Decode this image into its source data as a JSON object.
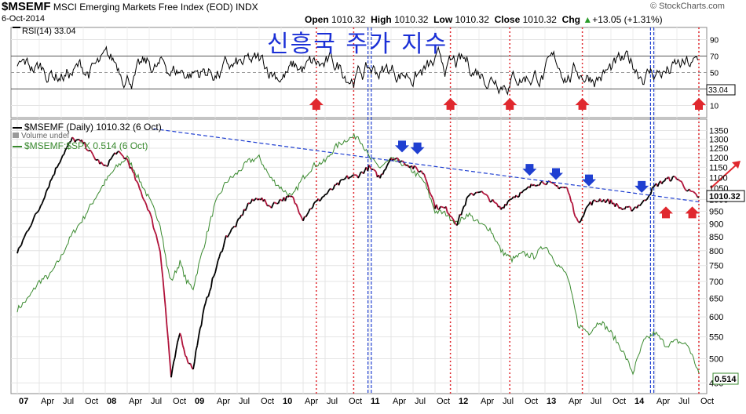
{
  "header": {
    "symbol": "$MSEMF",
    "name": "MSCI Emerging Markets Free Index (EOD)",
    "exchange": "INDX",
    "date": "6-Oct-2014",
    "brand": "© StockCharts.com",
    "open_label": "Open",
    "open": "1010.32",
    "high_label": "High",
    "high": "1010.32",
    "low_label": "Low",
    "low": "1010.32",
    "close_label": "Close",
    "close": "1010.32",
    "chg_label": "Chg",
    "chg": "+13.05 (+1.31%)",
    "chg_arrow": "▲"
  },
  "overlay_title": "신흥국 주가 지수",
  "rsi": {
    "legend": "RSI(14) 33.04",
    "last": "33.04",
    "ticks": [
      90,
      70,
      50,
      30,
      10
    ],
    "ylim": [
      0,
      100
    ],
    "line_color": "#000000"
  },
  "price_legend": {
    "main": "$MSEMF (Daily) 1010.32 (6 Oct)",
    "volume": "Volume undef",
    "ratio": "$MSEMF:$SPX 0.514 (6 Oct)"
  },
  "chart_data": {
    "type": "line",
    "x_labels": [
      "07",
      "Apr",
      "Jul",
      "Oct",
      "08",
      "Apr",
      "Jul",
      "Oct",
      "09",
      "Apr",
      "Jul",
      "Oct",
      "10",
      "Apr",
      "Jul",
      "Oct",
      "11",
      "Apr",
      "Jul",
      "Oct",
      "12",
      "Apr",
      "Jul",
      "Oct",
      "13",
      "Apr",
      "Jul",
      "Oct",
      "14",
      "Apr",
      "Jul",
      "Oct"
    ],
    "y_ticks": [
      1350,
      1300,
      1250,
      1200,
      1150,
      1100,
      1050,
      1000,
      950,
      900,
      850,
      800,
      750,
      700,
      650,
      600,
      550,
      500,
      450
    ],
    "y_log": true,
    "ylim": [
      440,
      1380
    ],
    "price_last": "1010.32",
    "ratio_last": "0.514",
    "series": [
      {
        "name": "$MSEMF",
        "color": "#000000",
        "points": [
          [
            0,
            790
          ],
          [
            0.5,
            880
          ],
          [
            1,
            960
          ],
          [
            1.5,
            1080
          ],
          [
            2,
            1200
          ],
          [
            2.5,
            1300
          ],
          [
            3,
            1280
          ],
          [
            3.5,
            1200
          ],
          [
            4,
            1150
          ],
          [
            4.5,
            1230
          ],
          [
            5,
            1190
          ],
          [
            5.5,
            1060
          ],
          [
            6,
            950
          ],
          [
            6.5,
            800
          ],
          [
            6.8,
            580
          ],
          [
            7,
            460
          ],
          [
            7.4,
            560
          ],
          [
            7.7,
            500
          ],
          [
            8,
            480
          ],
          [
            8.5,
            620
          ],
          [
            9,
            730
          ],
          [
            9.5,
            850
          ],
          [
            10,
            900
          ],
          [
            10.5,
            980
          ],
          [
            11,
            1010
          ],
          [
            11.5,
            970
          ],
          [
            12,
            1000
          ],
          [
            12.5,
            1010
          ],
          [
            13,
            920
          ],
          [
            13.5,
            980
          ],
          [
            14,
            1020
          ],
          [
            14.5,
            1060
          ],
          [
            15,
            1100
          ],
          [
            15.5,
            1110
          ],
          [
            16,
            1150
          ],
          [
            16.5,
            1100
          ],
          [
            17,
            1200
          ],
          [
            17.5,
            1180
          ],
          [
            18,
            1150
          ],
          [
            18.5,
            1120
          ],
          [
            19,
            970
          ],
          [
            19.5,
            960
          ],
          [
            20,
            900
          ],
          [
            20.5,
            1010
          ],
          [
            21,
            1040
          ],
          [
            21.5,
            1000
          ],
          [
            22,
            960
          ],
          [
            22.5,
            1010
          ],
          [
            23,
            1030
          ],
          [
            23.5,
            1070
          ],
          [
            24,
            1080
          ],
          [
            24.5,
            1060
          ],
          [
            25,
            1050
          ],
          [
            25.5,
            900
          ],
          [
            26,
            980
          ],
          [
            26.5,
            1000
          ],
          [
            27,
            990
          ],
          [
            27.5,
            960
          ],
          [
            28,
            960
          ],
          [
            28.5,
            990
          ],
          [
            29,
            1060
          ],
          [
            29.5,
            1090
          ],
          [
            30,
            1100
          ],
          [
            30.5,
            1040
          ],
          [
            31,
            1010
          ]
        ]
      },
      {
        "name": "$MSEMF:$SPX",
        "color": "#3a8a2f",
        "points": [
          [
            0,
            620
          ],
          [
            0.5,
            650
          ],
          [
            1,
            700
          ],
          [
            1.5,
            720
          ],
          [
            2,
            780
          ],
          [
            2.5,
            860
          ],
          [
            3,
            920
          ],
          [
            3.5,
            1000
          ],
          [
            4,
            1080
          ],
          [
            4.5,
            1150
          ],
          [
            5,
            1200
          ],
          [
            5.5,
            1100
          ],
          [
            6,
            1000
          ],
          [
            6.5,
            900
          ],
          [
            6.8,
            750
          ],
          [
            7,
            700
          ],
          [
            7.4,
            760
          ],
          [
            7.7,
            700
          ],
          [
            8,
            680
          ],
          [
            8.5,
            820
          ],
          [
            9,
            980
          ],
          [
            9.5,
            1080
          ],
          [
            10,
            1120
          ],
          [
            10.5,
            1180
          ],
          [
            11,
            1200
          ],
          [
            11.5,
            1100
          ],
          [
            12,
            1050
          ],
          [
            12.5,
            1010
          ],
          [
            13,
            1100
          ],
          [
            13.5,
            1160
          ],
          [
            14,
            1180
          ],
          [
            14.5,
            1260
          ],
          [
            15,
            1300
          ],
          [
            15.5,
            1320
          ],
          [
            16,
            1200
          ],
          [
            16.5,
            1150
          ],
          [
            17,
            1190
          ],
          [
            17.5,
            1170
          ],
          [
            18,
            1130
          ],
          [
            18.5,
            1080
          ],
          [
            19,
            950
          ],
          [
            19.5,
            940
          ],
          [
            20,
            900
          ],
          [
            20.5,
            940
          ],
          [
            21,
            900
          ],
          [
            21.5,
            880
          ],
          [
            22,
            800
          ],
          [
            22.5,
            770
          ],
          [
            23,
            790
          ],
          [
            23.5,
            780
          ],
          [
            24,
            820
          ],
          [
            24.5,
            760
          ],
          [
            25,
            720
          ],
          [
            25.5,
            580
          ],
          [
            26,
            560
          ],
          [
            26.5,
            590
          ],
          [
            27,
            560
          ],
          [
            27.5,
            520
          ],
          [
            28,
            470
          ],
          [
            28.5,
            540
          ],
          [
            29,
            560
          ],
          [
            29.5,
            530
          ],
          [
            30,
            540
          ],
          [
            30.5,
            530
          ],
          [
            31,
            470
          ]
        ]
      }
    ],
    "trendline": {
      "color": "#1f3fd1",
      "from": [
        6.2,
        1360
      ],
      "to": [
        31,
        990
      ]
    },
    "red_verticals": [
      13.6,
      15.3,
      19.7,
      22.4,
      25.7,
      31
    ],
    "blue_verticals": [
      15.95,
      16.1,
      28.8,
      28.95
    ],
    "blue_down_arrows": [
      [
        17.5,
        1240
      ],
      [
        18.2,
        1230
      ],
      [
        23.3,
        1120
      ],
      [
        24.5,
        1100
      ],
      [
        26,
        1070
      ],
      [
        28.4,
        1040
      ]
    ],
    "red_up_arrows": [
      [
        29.5,
        960
      ],
      [
        30.7,
        960
      ]
    ],
    "rsi_red_up_arrows": [
      13.6,
      19.7,
      22.4,
      25.7,
      31
    ],
    "red_arrow_up_right": {
      "color": "#e0282e"
    }
  }
}
